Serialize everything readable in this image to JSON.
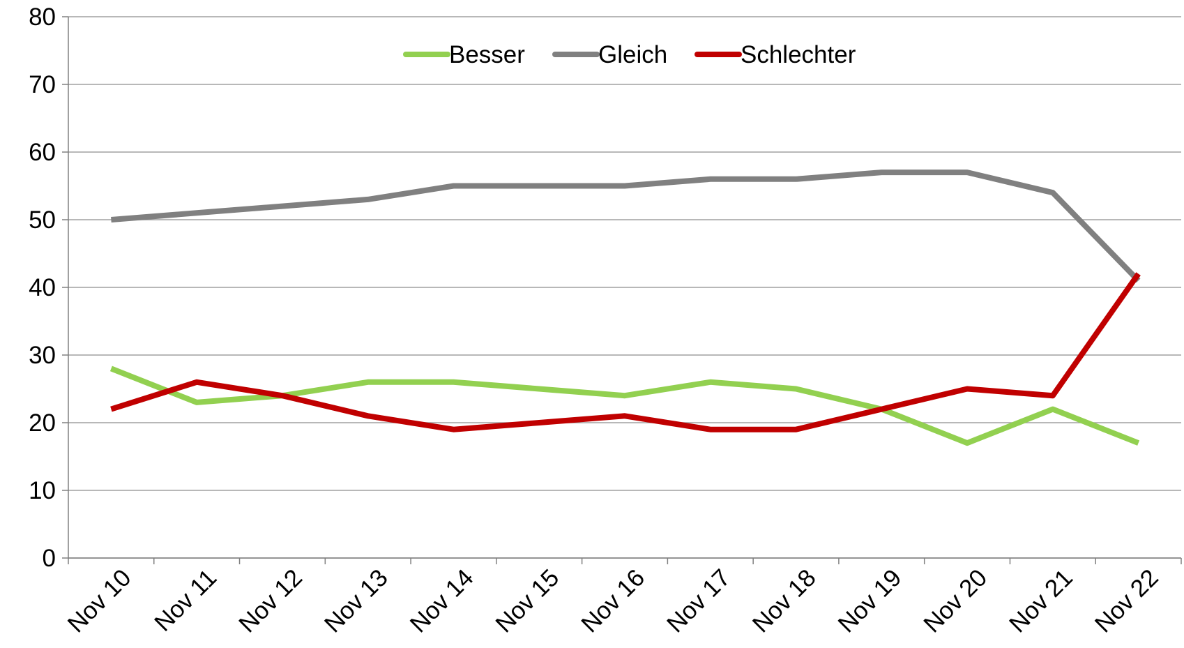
{
  "chart_data": {
    "type": "line",
    "categories": [
      "Nov 10",
      "Nov 11",
      "Nov 12",
      "Nov 13",
      "Nov 14",
      "Nov 15",
      "Nov 16",
      "Nov 17",
      "Nov 18",
      "Nov 19",
      "Nov 20",
      "Nov 21",
      "Nov 22"
    ],
    "series": [
      {
        "name": "Besser",
        "color": "#92d050",
        "values": [
          28,
          23,
          24,
          26,
          26,
          25,
          24,
          26,
          25,
          22,
          17,
          22,
          17
        ]
      },
      {
        "name": "Gleich",
        "color": "#808080",
        "values": [
          50,
          51,
          52,
          53,
          55,
          55,
          55,
          56,
          56,
          57,
          57,
          54,
          41
        ]
      },
      {
        "name": "Schlechter",
        "color": "#c00000",
        "values": [
          22,
          26,
          24,
          21,
          19,
          20,
          21,
          19,
          19,
          22,
          25,
          24,
          42
        ]
      }
    ],
    "ylim": [
      0,
      80
    ],
    "yticks": [
      0,
      10,
      20,
      30,
      40,
      50,
      60,
      70,
      80
    ],
    "grid": true,
    "legend": "top"
  }
}
